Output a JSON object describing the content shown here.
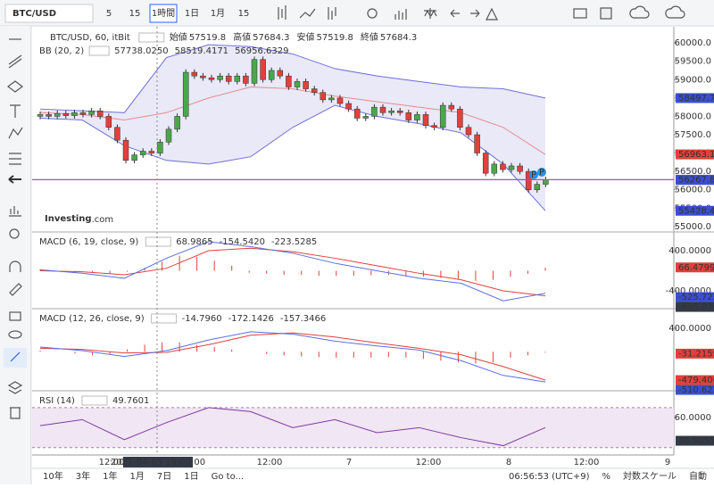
{
  "toolbar": {
    "symbol": "BTC/USD",
    "intervals": [
      "5",
      "15",
      "1時間",
      "1日",
      "1月",
      "15"
    ],
    "active": 2
  },
  "main": {
    "title": "BTC/USD, 60, itBit",
    "ohlc": [
      {
        "label": "始値",
        "value": "57519.8"
      },
      {
        "label": "高値",
        "value": "57684.3"
      },
      {
        "label": "安値",
        "value": "57519.8"
      },
      {
        "label": "終値",
        "value": "57684.3"
      }
    ],
    "bb": {
      "label": "BB (20, 2)",
      "values": [
        {
          "text": "57738.0250",
          "color": "#e0413b"
        },
        {
          "text": "58519.4171",
          "color": "#2b3fc8"
        },
        {
          "text": "56956.6329",
          "color": "#2b3fc8"
        }
      ]
    },
    "ylim": [
      54900,
      60440
    ],
    "yticks": [
      {
        "value": 60000,
        "label": "60000.0"
      },
      {
        "value": 59500,
        "label": "59500.0"
      },
      {
        "value": 59000,
        "label": "59000.0"
      },
      {
        "value": 58500,
        "label": "58500.0"
      },
      {
        "value": 58000,
        "label": "58000.0"
      },
      {
        "value": 57500,
        "label": "57500.0"
      },
      {
        "value": 57000,
        "label": "57000.0"
      },
      {
        "value": 56500,
        "label": "56500.0"
      },
      {
        "value": 56000,
        "label": "56000.0"
      },
      {
        "value": 55500,
        "label": "55500.0"
      },
      {
        "value": 55000,
        "label": "55000.0"
      }
    ],
    "price_line": {
      "value": 56275.2,
      "label": "56275.2",
      "color": "#d633d6"
    },
    "tags": [
      {
        "value": 58497.7,
        "label": "58497.7",
        "color": "#3b4fd0"
      },
      {
        "value": 56963.1,
        "label": "56963.1",
        "color": "#e0413b"
      },
      {
        "value": 56267.8,
        "label": "56267.8",
        "color": "#3b4fd0"
      },
      {
        "value": 55428.4,
        "label": "55428.4",
        "color": "#3b4fd0"
      }
    ],
    "up_color": "#4aa84a",
    "down_color": "#e0413b",
    "open": [
      58000,
      58050,
      58000,
      58080,
      58020,
      58100,
      58050,
      58150,
      58000,
      57700,
      57350,
      56800,
      56950,
      57050,
      57000,
      57300,
      57650,
      58000,
      59200,
      59100,
      59050,
      59000,
      59100,
      58950,
      59100,
      58900,
      59550,
      59000,
      59250,
      59100,
      58800,
      58950,
      58750,
      58650,
      58450,
      58500,
      58350,
      58200,
      57950,
      58000,
      58250,
      58100,
      58150,
      58100,
      57900,
      58050,
      57750,
      57700,
      58300,
      58200,
      57700,
      57500,
      57000,
      56450,
      56700,
      56550,
      56650,
      56500,
      56000,
      56150
    ],
    "high": [
      58130,
      58130,
      58160,
      58160,
      58180,
      58180,
      58230,
      58230,
      58080,
      57780,
      57430,
      57030,
      57130,
      57130,
      57380,
      57730,
      58080,
      59280,
      59280,
      59180,
      59130,
      59180,
      59180,
      59180,
      59180,
      59630,
      59630,
      59330,
      59330,
      59180,
      59030,
      59030,
      58830,
      58730,
      58580,
      58580,
      58430,
      58280,
      58080,
      58330,
      58330,
      58230,
      58230,
      58180,
      58130,
      58130,
      57830,
      58380,
      58380,
      58280,
      57780,
      57580,
      57080,
      56780,
      56780,
      56730,
      56730,
      56580,
      56230,
      56355
    ],
    "low": [
      57920,
      57920,
      57920,
      57940,
      57940,
      57970,
      57970,
      57920,
      57620,
      57270,
      56720,
      56720,
      56870,
      56920,
      56920,
      57220,
      57570,
      57920,
      59020,
      58970,
      58920,
      58920,
      58870,
      58870,
      58820,
      58820,
      58920,
      58920,
      59020,
      58720,
      58720,
      58670,
      58570,
      58370,
      58370,
      58270,
      58120,
      57870,
      57870,
      57920,
      58020,
      58020,
      58020,
      57820,
      57820,
      57670,
      57620,
      57620,
      58120,
      57620,
      57420,
      56920,
      56370,
      56370,
      56470,
      56470,
      56420,
      55920,
      55920,
      56070
    ],
    "close": [
      58050,
      58000,
      58080,
      58020,
      58100,
      58050,
      58150,
      58000,
      57700,
      57350,
      56800,
      56950,
      57050,
      57000,
      57300,
      57650,
      58000,
      59200,
      59100,
      59050,
      59000,
      59100,
      58950,
      59100,
      58900,
      59550,
      59000,
      59250,
      59100,
      58800,
      58950,
      58750,
      58650,
      58450,
      58500,
      58350,
      58200,
      57950,
      58000,
      58250,
      58100,
      58150,
      58100,
      57900,
      58050,
      57750,
      57700,
      58300,
      58200,
      57700,
      57500,
      57000,
      56450,
      56700,
      56550,
      56650,
      56500,
      56000,
      56150,
      56275
    ],
    "bb_upper": [
      58200,
      58150,
      58100,
      59600,
      59950,
      59900,
      59700,
      59300,
      59100,
      58950,
      58800,
      58750,
      58500
    ],
    "bb_middle": [
      58100,
      58050,
      57900,
      58100,
      58500,
      58800,
      58750,
      58550,
      58400,
      58250,
      58100,
      57700,
      56960
    ],
    "bb_lower": [
      57950,
      57900,
      57200,
      56800,
      56700,
      56900,
      57700,
      58300,
      58000,
      57800,
      57550,
      56700,
      55430
    ],
    "logo": [
      "Investing",
      ".com"
    ],
    "markers": [
      "P",
      "P"
    ]
  },
  "macd1": {
    "label": "MACD (6, 19, close, 9)",
    "values": [
      {
        "text": "68.9865",
        "color": "#e0413b"
      },
      {
        "text": "-154.5420",
        "color": "#2b3fc8"
      },
      {
        "text": "-223.5285",
        "color": "#e0413b"
      }
    ],
    "ylim": [
      -756,
      738
    ],
    "yticks": [
      {
        "value": 400,
        "label": "400.0000"
      },
      {
        "value": -400,
        "label": "-400.0000"
      }
    ],
    "tags": [
      {
        "value": 66.4799,
        "label": "66.4799",
        "color": "#e0413b"
      },
      {
        "value": -525.7225,
        "label": "-525.7225",
        "color": "#3b4fd0"
      },
      {
        "value": -695.0779,
        "label": "-695.0779",
        "color": "#333a48"
      }
    ],
    "macd": [
      20,
      -50,
      -150,
      250,
      580,
      480,
      350,
      150,
      0,
      -150,
      -250,
      -600,
      -450
    ],
    "signal": [
      0,
      -20,
      -80,
      50,
      400,
      450,
      380,
      250,
      100,
      -50,
      -180,
      -400,
      -500
    ],
    "hist": [
      30,
      -20,
      -40,
      -30,
      -60,
      -20,
      60,
      180,
      300,
      280,
      200,
      100,
      -40,
      -60,
      -80,
      -80,
      -100,
      -100,
      -100,
      -90,
      -80,
      -100,
      -120,
      -140,
      -160,
      -200,
      -180,
      -120,
      -60,
      60
    ]
  },
  "macd2": {
    "label": "MACD (12, 26, close, 9)",
    "values": [
      {
        "text": "-14.7960",
        "color": "#e0413b"
      },
      {
        "text": "-172.1426",
        "color": "#2b3fc8"
      },
      {
        "text": "-157.3466",
        "color": "#e0413b"
      }
    ],
    "ylim": [
      -660,
      700
    ],
    "yticks": [
      {
        "value": 400,
        "label": "400.0000"
      }
    ],
    "tags": [
      {
        "value": -31.2159,
        "label": "-31.2159",
        "color": "#e0413b"
      },
      {
        "value": -479.4065,
        "label": "-479.4065",
        "color": "#e0413b"
      },
      {
        "value": -510.6224,
        "label": "-510.6224",
        "color": "#3b4fd0"
      }
    ],
    "macd": [
      80,
      20,
      -80,
      20,
      200,
      340,
      300,
      180,
      100,
      30,
      -150,
      -400,
      -510
    ],
    "signal": [
      60,
      40,
      -20,
      -10,
      120,
      280,
      320,
      250,
      150,
      60,
      -50,
      -250,
      -480
    ],
    "hist": [
      20,
      0,
      -30,
      -60,
      -40,
      40,
      120,
      160,
      160,
      120,
      80,
      40,
      0,
      -40,
      -60,
      -80,
      -90,
      -100,
      -100,
      -100,
      -90,
      -100,
      -120,
      -150,
      -180,
      -200,
      -180,
      -100,
      -60,
      -15
    ]
  },
  "rsi": {
    "label": "RSI (14)",
    "values": [
      {
        "text": "49.7601",
        "color": "#7e3a9e"
      }
    ],
    "ylim": [
      22.7,
      85
    ],
    "yticks": [
      {
        "value": 60,
        "label": "60.0000"
      }
    ],
    "band": [
      30,
      70
    ],
    "tags": [
      {
        "value": 36.9055,
        "label": "36.9055",
        "color": "#333a48"
      }
    ],
    "line": [
      52,
      58,
      38,
      55,
      70,
      66,
      50,
      58,
      45,
      50,
      40,
      32,
      50
    ]
  },
  "time_axis": {
    "labels": [
      "12:00",
      "12:00",
      "7",
      "12:00",
      "8",
      "12:00",
      "9"
    ],
    "crosshair": "2021-04-05 19:00:00"
  },
  "bottom": {
    "ranges": [
      "10年",
      "3年",
      "1年",
      "1月",
      "7日",
      "1日"
    ],
    "goto": "Go to...",
    "clock": "06:56:53 (UTC+9)",
    "options": [
      "%",
      "対数スケール",
      "自動"
    ]
  }
}
